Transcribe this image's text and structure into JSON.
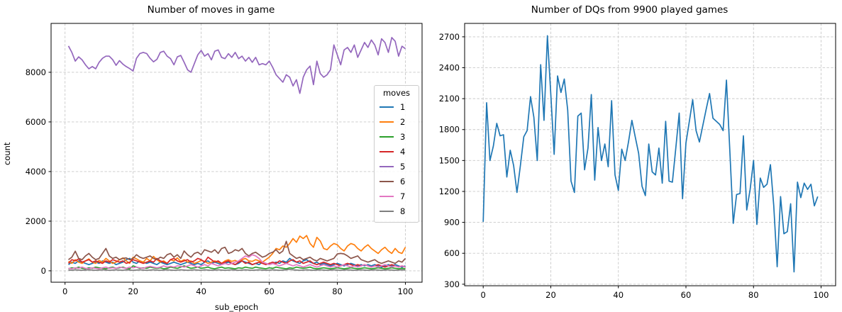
{
  "page": {
    "background": "#ffffff"
  },
  "chart_data": [
    {
      "type": "line",
      "title": "Number of moves in game",
      "xlabel": "sub_epoch",
      "ylabel": "count",
      "legend": {
        "title": "moves",
        "position": "center-right"
      },
      "grid": true,
      "x_start": 1,
      "xticks": [
        0,
        20,
        40,
        60,
        80,
        100
      ],
      "yticks": [
        0,
        2000,
        4000,
        6000,
        8000
      ],
      "xlim": [
        -4.1,
        104.9
      ],
      "ylim": [
        -460,
        9970
      ],
      "series": [
        {
          "name": "1",
          "color": "#1f77b4",
          "values": [
            250,
            350,
            300,
            400,
            350,
            300,
            250,
            300,
            350,
            300,
            400,
            350,
            300,
            350,
            250,
            300,
            350,
            450,
            500,
            350,
            300,
            400,
            350,
            300,
            350,
            300,
            250,
            350,
            300,
            250,
            300,
            350,
            300,
            250,
            300,
            350,
            300,
            250,
            300,
            250,
            350,
            400,
            300,
            350,
            300,
            250,
            300,
            350,
            300,
            250,
            300,
            400,
            350,
            300,
            250,
            300,
            250,
            350,
            300,
            250,
            300,
            350,
            300,
            400,
            350,
            500,
            400,
            350,
            300,
            400,
            450,
            350,
            300,
            350,
            250,
            300,
            250,
            200,
            250,
            300,
            250,
            200,
            250,
            300,
            250,
            200,
            250,
            200,
            250,
            200,
            250,
            200,
            150,
            200,
            250,
            200,
            250,
            200,
            150,
            200
          ]
        },
        {
          "name": "2",
          "color": "#ff7f0e",
          "values": [
            380,
            300,
            450,
            350,
            300,
            400,
            480,
            350,
            300,
            420,
            350,
            500,
            400,
            300,
            350,
            450,
            520,
            400,
            300,
            550,
            480,
            400,
            350,
            500,
            400,
            580,
            450,
            350,
            400,
            300,
            450,
            400,
            520,
            380,
            450,
            350,
            400,
            300,
            350,
            420,
            380,
            300,
            350,
            400,
            350,
            300,
            400,
            450,
            380,
            420,
            350,
            450,
            500,
            400,
            380,
            450,
            400,
            350,
            450,
            550,
            700,
            900,
            850,
            1000,
            950,
            1100,
            1300,
            1150,
            1400,
            1300,
            1420,
            1100,
            950,
            1350,
            1200,
            900,
            850,
            1000,
            1100,
            1050,
            900,
            800,
            1000,
            1100,
            1050,
            900,
            800,
            950,
            1050,
            900,
            800,
            700,
            850,
            950,
            800,
            700,
            900,
            750,
            700,
            950
          ]
        },
        {
          "name": "3",
          "color": "#2ca02c",
          "values": [
            80,
            120,
            100,
            150,
            100,
            80,
            120,
            100,
            150,
            120,
            100,
            80,
            120,
            150,
            100,
            120,
            150,
            100,
            80,
            200,
            150,
            100,
            120,
            100,
            150,
            120,
            100,
            120,
            80,
            100,
            150,
            120,
            100,
            150,
            200,
            150,
            100,
            120,
            150,
            100,
            120,
            150,
            100,
            80,
            120,
            150,
            100,
            120,
            100,
            80,
            120,
            100,
            150,
            120,
            100,
            150,
            120,
            100,
            80,
            120,
            100,
            150,
            120,
            100,
            80,
            120,
            100,
            150,
            120,
            100,
            120,
            150,
            100,
            80,
            100,
            120,
            100,
            80,
            100,
            120,
            100,
            80,
            100,
            120,
            100,
            80,
            100,
            120,
            100,
            80,
            100,
            120,
            100,
            80,
            100,
            120,
            100,
            80,
            100,
            80
          ]
        },
        {
          "name": "4",
          "color": "#d62728",
          "values": [
            300,
            450,
            400,
            480,
            350,
            400,
            450,
            350,
            400,
            350,
            300,
            400,
            350,
            450,
            400,
            350,
            400,
            300,
            350,
            450,
            400,
            350,
            300,
            350,
            400,
            350,
            500,
            400,
            350,
            300,
            450,
            500,
            400,
            350,
            400,
            450,
            350,
            400,
            500,
            450,
            350,
            550,
            450,
            350,
            400,
            300,
            350,
            400,
            300,
            250,
            350,
            400,
            300,
            350,
            250,
            300,
            350,
            300,
            250,
            300,
            350,
            300,
            400,
            350,
            300,
            400,
            450,
            350,
            400,
            300,
            350,
            400,
            300,
            250,
            300,
            350,
            300,
            250,
            300,
            250,
            200,
            250,
            300,
            250,
            200,
            250,
            200,
            250,
            200,
            150,
            200,
            250,
            200,
            150,
            200,
            250,
            200,
            150,
            200,
            150
          ]
        },
        {
          "name": "5",
          "color": "#9467bd",
          "values": [
            9060,
            8800,
            8450,
            8620,
            8500,
            8300,
            8140,
            8230,
            8140,
            8400,
            8565,
            8650,
            8650,
            8510,
            8280,
            8470,
            8330,
            8230,
            8150,
            8050,
            8565,
            8755,
            8800,
            8755,
            8565,
            8420,
            8520,
            8800,
            8850,
            8650,
            8550,
            8300,
            8620,
            8680,
            8400,
            8100,
            8000,
            8350,
            8700,
            8880,
            8650,
            8750,
            8500,
            8850,
            8900,
            8600,
            8550,
            8750,
            8600,
            8800,
            8550,
            8650,
            8450,
            8600,
            8400,
            8600,
            8300,
            8350,
            8300,
            8450,
            8200,
            7900,
            7750,
            7600,
            7900,
            7800,
            7450,
            7700,
            7150,
            7800,
            8100,
            8250,
            7500,
            8450,
            7950,
            7800,
            7900,
            8100,
            9100,
            8700,
            8300,
            8900,
            9000,
            8800,
            9100,
            8600,
            8900,
            9200,
            9000,
            9300,
            9100,
            8700,
            9350,
            9200,
            8800,
            9400,
            9250,
            8650,
            9050,
            8950
          ]
        },
        {
          "name": "6",
          "color": "#8c564b",
          "values": [
            450,
            550,
            790,
            500,
            450,
            600,
            700,
            550,
            450,
            500,
            700,
            900,
            600,
            500,
            550,
            450,
            500,
            520,
            450,
            500,
            650,
            550,
            500,
            550,
            600,
            500,
            450,
            550,
            500,
            650,
            700,
            550,
            650,
            500,
            800,
            650,
            550,
            700,
            750,
            650,
            850,
            800,
            750,
            850,
            700,
            900,
            950,
            700,
            750,
            850,
            800,
            900,
            700,
            600,
            700,
            750,
            650,
            550,
            600,
            700,
            750,
            850,
            700,
            800,
            1190,
            700,
            600,
            500,
            550,
            450,
            500,
            550,
            450,
            400,
            500,
            450,
            400,
            450,
            500,
            680,
            700,
            680,
            600,
            500,
            550,
            600,
            450,
            400,
            350,
            400,
            450,
            350,
            300,
            350,
            400,
            350,
            300,
            400,
            350,
            500
          ]
        },
        {
          "name": "7",
          "color": "#e377c2",
          "values": [
            100,
            80,
            120,
            100,
            150,
            100,
            80,
            120,
            100,
            80,
            120,
            150,
            100,
            120,
            100,
            150,
            120,
            100,
            150,
            120,
            150,
            120,
            100,
            150,
            180,
            150,
            120,
            150,
            200,
            150,
            180,
            150,
            200,
            180,
            150,
            200,
            250,
            200,
            150,
            200,
            250,
            200,
            300,
            250,
            200,
            250,
            300,
            250,
            300,
            350,
            400,
            500,
            600,
            550,
            650,
            600,
            500,
            350,
            300,
            250,
            300,
            250,
            200,
            250,
            300,
            250,
            200,
            250,
            200,
            150,
            200,
            250,
            200,
            150,
            200,
            250,
            200,
            150,
            200,
            150,
            200,
            250,
            200,
            150,
            200,
            150,
            200,
            250,
            200,
            150,
            200,
            150,
            200,
            250,
            200,
            150,
            200,
            150,
            200,
            150
          ]
        },
        {
          "name": "8",
          "color": "#7f7f7f",
          "values": [
            30,
            20,
            40,
            30,
            20,
            30,
            40,
            30,
            20,
            30,
            40,
            30,
            20,
            30,
            40,
            30,
            20,
            40,
            30,
            20,
            30,
            40,
            30,
            20,
            30,
            40,
            30,
            20,
            30,
            40,
            30,
            20,
            30,
            40,
            30,
            20,
            30,
            40,
            30,
            20,
            40,
            30,
            20,
            30,
            40,
            30,
            20,
            30,
            40,
            30,
            20,
            30,
            40,
            30,
            20,
            30,
            40,
            30,
            20,
            30,
            40,
            30,
            20,
            30,
            40,
            60,
            40,
            30,
            20,
            30,
            40,
            30,
            20,
            30,
            40,
            30,
            20,
            30,
            40,
            30,
            20,
            30,
            40,
            30,
            20,
            30,
            40,
            30,
            20,
            30,
            40,
            30,
            20,
            30,
            40,
            30,
            20,
            30,
            40,
            30
          ]
        }
      ]
    },
    {
      "type": "line",
      "title": "Number of DQs from 9900 played games",
      "xlabel": "",
      "ylabel": "",
      "grid": true,
      "x_start": 0,
      "xticks": [
        0,
        20,
        40,
        60,
        80,
        100
      ],
      "yticks": [
        300,
        600,
        900,
        1200,
        1500,
        1800,
        2100,
        2400,
        2700
      ],
      "xlim": [
        -5.5,
        104.3
      ],
      "ylim": [
        285,
        2830
      ],
      "series": [
        {
          "name": "DQs",
          "color": "#1f77b4",
          "values": [
            905,
            2060,
            1500,
            1640,
            1860,
            1740,
            1750,
            1340,
            1600,
            1450,
            1190,
            1450,
            1730,
            1790,
            2120,
            1920,
            1500,
            2430,
            1890,
            2710,
            2140,
            1560,
            2320,
            2160,
            2290,
            1990,
            1300,
            1190,
            1930,
            1960,
            1410,
            1620,
            2140,
            1310,
            1820,
            1500,
            1660,
            1440,
            2080,
            1360,
            1210,
            1610,
            1500,
            1680,
            1890,
            1730,
            1570,
            1250,
            1160,
            1660,
            1390,
            1360,
            1620,
            1280,
            1880,
            1300,
            1290,
            1620,
            1960,
            1130,
            1670,
            1880,
            2090,
            1790,
            1680,
            1840,
            2000,
            2150,
            1910,
            1880,
            1850,
            1790,
            2280,
            1590,
            890,
            1170,
            1180,
            1740,
            1020,
            1220,
            1500,
            880,
            1330,
            1240,
            1270,
            1460,
            1060,
            470,
            1150,
            790,
            810,
            1080,
            420,
            1290,
            1140,
            1280,
            1220,
            1270,
            1060,
            1150
          ]
        }
      ]
    }
  ]
}
